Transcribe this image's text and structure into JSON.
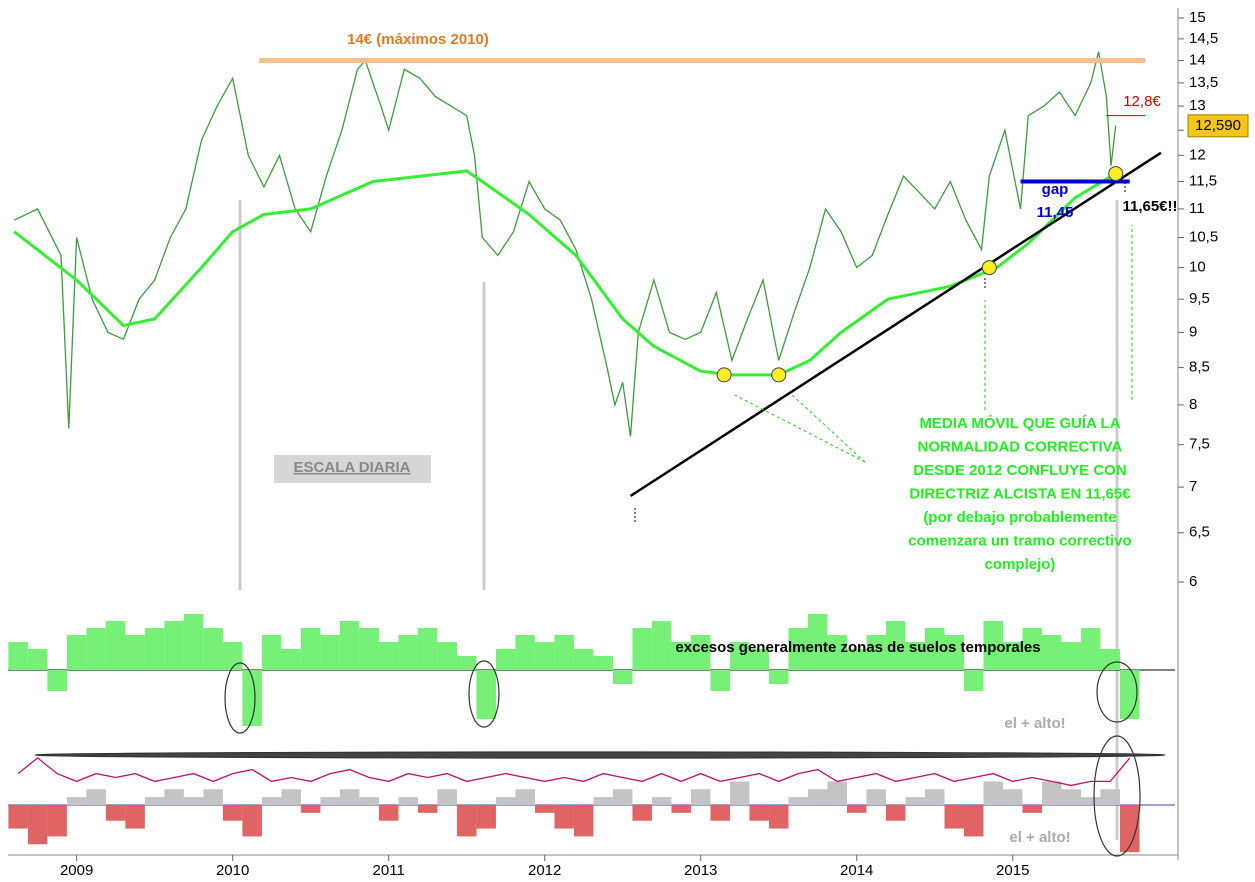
{
  "chart_data": [
    {
      "type": "line",
      "log": true,
      "xlim": [
        2008.56,
        2016.04
      ],
      "ylim": [
        6,
        15
      ],
      "yticks": [
        6,
        {
          "value": 6.5,
          "label": "6,5"
        },
        7,
        {
          "value": 7.5,
          "label": "7,5"
        },
        8,
        {
          "value": 8.5,
          "label": "8,5"
        },
        9,
        {
          "value": 9.5,
          "label": "9,5"
        },
        10,
        {
          "value": 10.5,
          "label": "10,5"
        },
        11,
        {
          "value": 11.5,
          "label": "11,5"
        },
        12,
        {
          "value": 12.5,
          "label": "12,5"
        },
        13,
        {
          "value": 13.5,
          "label": "13,5"
        },
        14,
        {
          "value": 14.5,
          "label": "14,5"
        },
        15
      ],
      "series": [
        {
          "color": "#3c9c3c",
          "x": [
            2008.6,
            2008.75,
            2008.9,
            2008.95,
            2009.0,
            2009.1,
            2009.2,
            2009.3,
            2009.4,
            2009.5,
            2009.6,
            2009.7,
            2009.8,
            2009.9,
            2010.0,
            2010.1,
            2010.2,
            2010.3,
            2010.4,
            2010.5,
            2010.6,
            2010.7,
            2010.8,
            2010.85,
            2010.95,
            2011.0,
            2011.1,
            2011.2,
            2011.3,
            2011.4,
            2011.5,
            2011.55,
            2011.6,
            2011.7,
            2011.8,
            2011.9,
            2012.0,
            2012.1,
            2012.2,
            2012.3,
            2012.4,
            2012.45,
            2012.5,
            2012.55,
            2012.6,
            2012.7,
            2012.8,
            2012.9,
            2013.0,
            2013.1,
            2013.2,
            2013.3,
            2013.4,
            2013.5,
            2013.6,
            2013.7,
            2013.8,
            2013.9,
            2014.0,
            2014.1,
            2014.2,
            2014.3,
            2014.4,
            2014.5,
            2014.6,
            2014.7,
            2014.8,
            2014.85,
            2014.95,
            2015.05,
            2015.1,
            2015.2,
            2015.3,
            2015.4,
            2015.5,
            2015.55,
            2015.6,
            2015.63,
            2015.66
          ],
          "values": [
            10.8,
            11.0,
            10.2,
            7.7,
            10.5,
            9.5,
            9.0,
            8.9,
            9.5,
            9.8,
            10.5,
            11.0,
            12.3,
            13.0,
            13.6,
            12.0,
            11.4,
            12.0,
            11.0,
            10.6,
            11.6,
            12.5,
            13.8,
            14.0,
            13.0,
            12.5,
            13.8,
            13.6,
            13.2,
            13.0,
            12.8,
            12.0,
            10.5,
            10.2,
            10.6,
            11.5,
            11.0,
            10.8,
            10.3,
            9.5,
            8.5,
            8.0,
            8.3,
            7.6,
            9.0,
            9.8,
            9.0,
            8.9,
            9.0,
            9.6,
            8.6,
            9.2,
            9.8,
            8.6,
            9.3,
            10.0,
            11.0,
            10.6,
            10.0,
            10.2,
            10.9,
            11.6,
            11.3,
            11.0,
            11.5,
            10.8,
            10.3,
            11.6,
            12.5,
            11.0,
            12.8,
            13.0,
            13.3,
            12.8,
            13.5,
            14.2,
            13.2,
            11.8,
            12.59
          ]
        },
        {
          "color": "#33ee33",
          "x": [
            2008.6,
            2009.0,
            2009.3,
            2009.5,
            2009.8,
            2010.0,
            2010.2,
            2010.5,
            2010.9,
            2011.2,
            2011.5,
            2011.6,
            2011.9,
            2012.2,
            2012.5,
            2012.7,
            2013.0,
            2013.2,
            2013.5,
            2013.7,
            2013.9,
            2014.2,
            2014.6,
            2014.9,
            2015.1,
            2015.4,
            2015.66
          ],
          "values": [
            10.6,
            9.8,
            9.1,
            9.2,
            10.0,
            10.6,
            10.9,
            11.0,
            11.5,
            11.6,
            11.7,
            11.5,
            10.9,
            10.2,
            9.2,
            8.8,
            8.45,
            8.4,
            8.4,
            8.6,
            9.0,
            9.5,
            9.7,
            10.0,
            10.4,
            11.2,
            11.65
          ]
        }
      ],
      "last_label": "12,590",
      "lines": {
        "resistance": {
          "x": [
            2010.17,
            2015.85
          ],
          "y": 14
        },
        "trend": {
          "x": [
            2012.55,
            2015.95
          ],
          "y": [
            6.9,
            12.05
          ]
        },
        "gap": {
          "x": [
            2015.05,
            2015.75
          ],
          "y": 11.5
        },
        "target": {
          "x": [
            2015.6,
            2015.85
          ],
          "y": 12.8
        }
      },
      "touches": {
        "x": [
          2013.15,
          2013.5,
          2014.85,
          2015.66
        ],
        "y": [
          8.4,
          8.4,
          10.0,
          11.65
        ]
      },
      "annotations": [
        "14€ (máximos 2010)",
        "ESCALA DIARIA",
        "gap",
        "11,45",
        "11,65€!!",
        "12,8€",
        "MEDIA MÓVIL QUE GUÍA LA",
        "NORMALIDAD CORRECTIVA",
        "DESDE 2012 CONFLUYE CON",
        "DIRECTRIZ ALCISTA EN 11,65€",
        "(por debajo probablemente",
        "comenzara un tramo correctivo",
        "complejo)"
      ]
    },
    {
      "type": "bar",
      "xlim": [
        2008.56,
        2016.04
      ],
      "ylim": [
        -10,
        10
      ],
      "series": [
        {
          "color": "#77f077",
          "negative_color": "#77f077",
          "x": [
            2008.625,
            2008.75,
            2008.875,
            2009,
            2009.125,
            2009.25,
            2009.375,
            2009.5,
            2009.625,
            2009.75,
            2009.875,
            2010,
            2010.125,
            2010.25,
            2010.375,
            2010.5,
            2010.625,
            2010.75,
            2010.875,
            2011,
            2011.125,
            2011.25,
            2011.375,
            2011.5,
            2011.625,
            2011.75,
            2011.875,
            2012,
            2012.125,
            2012.25,
            2012.375,
            2012.5,
            2012.625,
            2012.75,
            2012.875,
            2013,
            2013.125,
            2013.25,
            2013.375,
            2013.5,
            2013.625,
            2013.75,
            2013.875,
            2014,
            2014.125,
            2014.25,
            2014.375,
            2014.5,
            2014.625,
            2014.75,
            2014.875,
            2015,
            2015.125,
            2015.25,
            2015.375,
            2015.5,
            2015.625,
            2015.75
          ],
          "values": [
            4,
            3,
            -3,
            5,
            6,
            7,
            5,
            6,
            7,
            8,
            6,
            4,
            -8,
            5,
            3,
            6,
            5,
            7,
            6,
            4,
            5,
            6,
            4,
            2,
            -7,
            3,
            5,
            4,
            5,
            3,
            2,
            -2,
            6,
            7,
            4,
            5,
            -3,
            4,
            3,
            -2,
            6,
            8,
            5,
            3,
            5,
            7,
            4,
            6,
            5,
            -3,
            7,
            4,
            6,
            5,
            4,
            6,
            3,
            -7
          ]
        }
      ],
      "annotations": [
        "excesos generalmente zonas de suelos temporales"
      ]
    },
    {
      "type": "bar",
      "xlim": [
        2008.56,
        2016.04
      ],
      "ylim": [
        -7,
        7
      ],
      "xticks": [
        2009,
        2010,
        2011,
        2012,
        2013,
        2014,
        2015
      ],
      "series": [
        {
          "color": "#c4c4c4",
          "negative_color": "#e06464",
          "x": [
            2008.625,
            2008.75,
            2008.875,
            2009,
            2009.125,
            2009.25,
            2009.375,
            2009.5,
            2009.625,
            2009.75,
            2009.875,
            2010,
            2010.125,
            2010.25,
            2010.375,
            2010.5,
            2010.625,
            2010.75,
            2010.875,
            2011,
            2011.125,
            2011.25,
            2011.375,
            2011.5,
            2011.625,
            2011.75,
            2011.875,
            2012,
            2012.125,
            2012.25,
            2012.375,
            2012.5,
            2012.625,
            2012.75,
            2012.875,
            2013,
            2013.125,
            2013.25,
            2013.375,
            2013.5,
            2013.625,
            2013.75,
            2013.875,
            2014,
            2014.125,
            2014.25,
            2014.375,
            2014.5,
            2014.625,
            2014.75,
            2014.875,
            2015,
            2015.125,
            2015.25,
            2015.375,
            2015.5,
            2015.625,
            2015.75
          ],
          "values": [
            -3,
            -5,
            -4,
            1,
            2,
            -2,
            -3,
            1,
            2,
            1,
            2,
            -2,
            -4,
            1,
            2,
            -1,
            1,
            2,
            1,
            -2,
            1,
            -1,
            2,
            -4,
            -3,
            1,
            2,
            -1,
            -3,
            -4,
            1,
            2,
            -2,
            1,
            -1,
            2,
            -2,
            3,
            -2,
            -3,
            1,
            2,
            3,
            -1,
            2,
            -2,
            1,
            2,
            -3,
            -4,
            3,
            2,
            -1,
            3,
            2,
            1,
            2,
            -6
          ]
        },
        {
          "type": "line",
          "color": "#c0106a",
          "x": [
            2008.625,
            2008.75,
            2008.875,
            2009,
            2009.125,
            2009.25,
            2009.375,
            2009.5,
            2009.625,
            2009.75,
            2009.875,
            2010,
            2010.125,
            2010.25,
            2010.375,
            2010.5,
            2010.625,
            2010.75,
            2010.875,
            2011,
            2011.125,
            2011.25,
            2011.375,
            2011.5,
            2011.625,
            2011.75,
            2011.875,
            2012,
            2012.125,
            2012.25,
            2012.375,
            2012.5,
            2012.625,
            2012.75,
            2012.875,
            2013,
            2013.125,
            2013.25,
            2013.375,
            2013.5,
            2013.625,
            2013.75,
            2013.875,
            2014,
            2014.125,
            2014.25,
            2014.375,
            2014.5,
            2014.625,
            2014.75,
            2014.875,
            2015,
            2015.125,
            2015.25,
            2015.375,
            2015.5,
            2015.625,
            2015.75
          ],
          "values": [
            4,
            6,
            4,
            3,
            4,
            3.5,
            4,
            3,
            3.5,
            4,
            3,
            4,
            4.5,
            3,
            3.5,
            3,
            4,
            4.5,
            3.5,
            3,
            4,
            3.5,
            4,
            3,
            3.5,
            4,
            3.5,
            3,
            3.5,
            3,
            4,
            3.5,
            3,
            4,
            3,
            4,
            3,
            3.5,
            4,
            3,
            4,
            4.5,
            3,
            3.5,
            4,
            3,
            3.5,
            4,
            3,
            3.5,
            4,
            3,
            3.5,
            3,
            2.5,
            3,
            3,
            6
          ]
        }
      ],
      "annotations": [
        "el + alto!",
        "el + alto!"
      ]
    }
  ]
}
